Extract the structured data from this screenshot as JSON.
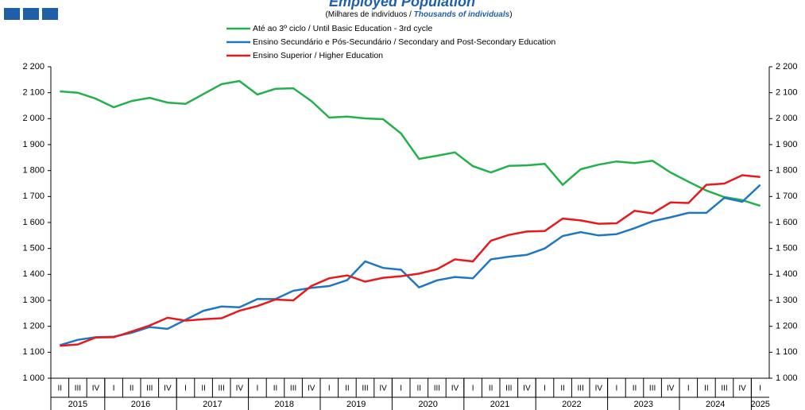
{
  "chart_data": {
    "type": "line",
    "title": "Employed Population",
    "subtitle": [
      "(Milhares de indivíduos / ",
      "Thousands of individuals",
      ")"
    ],
    "categories": [
      "II",
      "III",
      "IV",
      "I",
      "II",
      "III",
      "IV",
      "I",
      "II",
      "III",
      "IV",
      "I",
      "II",
      "III",
      "IV",
      "I",
      "II",
      "III",
      "IV",
      "I",
      "II",
      "III",
      "IV",
      "I",
      "II",
      "III",
      "IV",
      "I",
      "II",
      "III",
      "IV",
      "I",
      "II",
      "III",
      "IV",
      "I",
      "II",
      "III",
      "IV",
      "I"
    ],
    "years": [
      "2015",
      "2016",
      "2017",
      "2018",
      "2019",
      "2020",
      "2021",
      "2022",
      "2023",
      "2024",
      "2025"
    ],
    "series": [
      {
        "name": "Até ao 3º ciclo / Until Basic Education - 3rd cycle",
        "color": "#22b14c",
        "values": [
          2105,
          2100,
          2077,
          2044,
          2068,
          2080,
          2062,
          2057,
          2095,
          2133,
          2145,
          2093,
          2115,
          2117,
          2068,
          2004,
          2008,
          2001,
          1998,
          1943,
          1845,
          1857,
          1870,
          1817,
          1793,
          1818,
          1820,
          1826,
          1745,
          1805,
          1823,
          1835,
          1829,
          1838,
          1793,
          1757,
          1723,
          1698,
          1686,
          1664
        ]
      },
      {
        "name": "Ensino Secundário e Pós-Secundário / Secondary and Post-Secondary Education",
        "color": "#1f77c4",
        "values": [
          1127,
          1148,
          1158,
          1160,
          1175,
          1197,
          1190,
          1225,
          1260,
          1276,
          1273,
          1305,
          1305,
          1337,
          1348,
          1355,
          1378,
          1450,
          1425,
          1418,
          1350,
          1377,
          1390,
          1385,
          1458,
          1468,
          1475,
          1500,
          1548,
          1563,
          1550,
          1555,
          1578,
          1605,
          1620,
          1637,
          1637,
          1695,
          1680,
          1745
        ]
      },
      {
        "name": "Ensino Superior / Higher Education",
        "color": "#e8191c",
        "values": [
          1125,
          1130,
          1157,
          1158,
          1180,
          1203,
          1233,
          1222,
          1227,
          1231,
          1260,
          1278,
          1303,
          1300,
          1355,
          1385,
          1396,
          1372,
          1387,
          1393,
          1403,
          1420,
          1458,
          1450,
          1530,
          1552,
          1565,
          1567,
          1615,
          1608,
          1595,
          1597,
          1645,
          1635,
          1677,
          1675,
          1745,
          1750,
          1782,
          1775
        ]
      }
    ],
    "ylim": [
      1000,
      2200
    ],
    "yticks": [
      {
        "value": 1000,
        "label": "1 000"
      },
      {
        "value": 1100,
        "label": "1 100"
      },
      {
        "value": 1200,
        "label": "1 200"
      },
      {
        "value": 1300,
        "label": "1 300"
      },
      {
        "value": 1400,
        "label": "1 400"
      },
      {
        "value": 1500,
        "label": "1 500"
      },
      {
        "value": 1600,
        "label": "1 600"
      },
      {
        "value": 1700,
        "label": "1 700"
      },
      {
        "value": 1800,
        "label": "1 800"
      },
      {
        "value": 1900,
        "label": "1 900"
      },
      {
        "value": 2000,
        "label": "2 000"
      },
      {
        "value": 2100,
        "label": "2 100"
      },
      {
        "value": 2200,
        "label": "2 200"
      }
    ],
    "grid": false
  }
}
